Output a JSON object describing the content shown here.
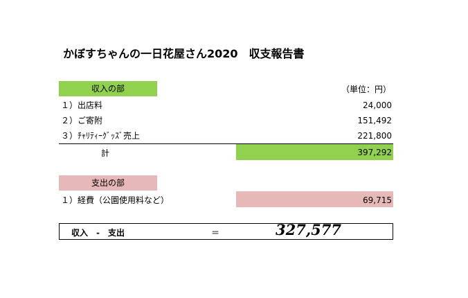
{
  "title": "かぼすちゃんの一日花屋さん2020　収支報告書",
  "unit": "（単位：円）",
  "income": {
    "label": "収入の部",
    "items": [
      {
        "label": "１）出店料",
        "value": "24,000"
      },
      {
        "label": "２）ご寄附",
        "value": "151,492"
      },
      {
        "label": "３）ﾁｬﾘﾃｨｰｸﾞｯｽﾞ売上",
        "value": "221,800"
      }
    ],
    "total_label": "計",
    "total_value": "397,292",
    "color": "#92d050"
  },
  "expense": {
    "label": "支出の部",
    "items": [
      {
        "label": "１）経費（公園使用料など）",
        "value": "69,715"
      }
    ],
    "color": "#e6b8b7"
  },
  "summary": {
    "label": "収入　-　支出",
    "equals": "＝",
    "value": "327,577"
  }
}
